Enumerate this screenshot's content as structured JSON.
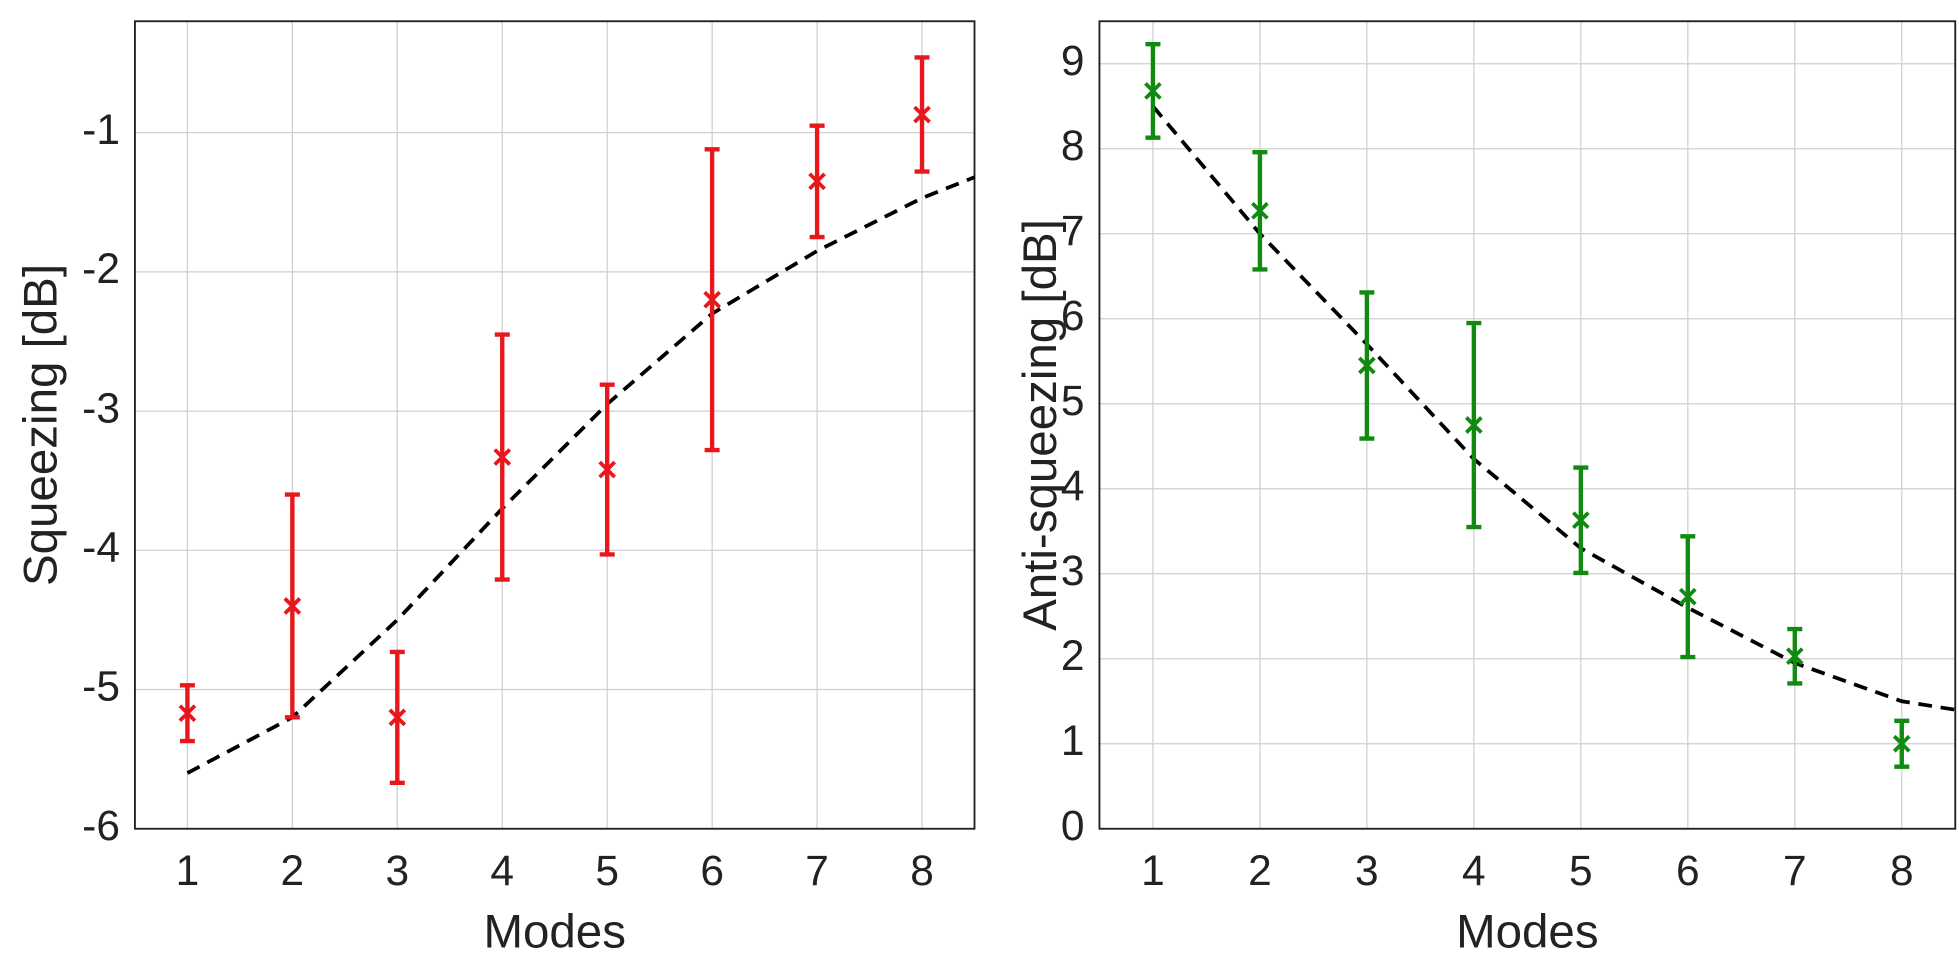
{
  "chart_data": [
    {
      "type": "errorbar",
      "ylabel": "Squeezing [dB]",
      "xlabel": "Modes",
      "x": [
        1,
        2,
        3,
        4,
        5,
        6,
        7,
        8
      ],
      "values": [
        -5.17,
        -4.4,
        -5.2,
        -3.33,
        -3.42,
        -2.2,
        -1.35,
        -0.87
      ],
      "errors": [
        0.2,
        0.8,
        0.47,
        0.88,
        0.61,
        1.08,
        0.4,
        0.41
      ],
      "color": "#e8171c",
      "fit": {
        "x": [
          1,
          2,
          3,
          4,
          5,
          6,
          7,
          8,
          8.5
        ],
        "y": [
          -5.6,
          -5.2,
          -4.5,
          -3.7,
          -2.95,
          -2.3,
          -1.85,
          -1.47,
          -1.32
        ],
        "color": "#000000"
      },
      "xlim": [
        0.5,
        8.5
      ],
      "ylim": [
        -6,
        -0.2
      ],
      "xticks": [
        1,
        2,
        3,
        4,
        5,
        6,
        7,
        8
      ],
      "yticks": [
        -6,
        -5,
        -4,
        -3,
        -2,
        -1
      ],
      "grid": true
    },
    {
      "type": "errorbar",
      "ylabel": "Anti-squeezing [dB]",
      "xlabel": "Modes",
      "x": [
        1,
        2,
        3,
        4,
        5,
        6,
        7,
        8
      ],
      "values": [
        8.68,
        7.27,
        5.45,
        4.75,
        3.63,
        2.73,
        2.03,
        1.0
      ],
      "errors": [
        0.55,
        0.69,
        0.86,
        1.2,
        0.62,
        0.71,
        0.32,
        0.27
      ],
      "color": "#118a11",
      "fit": {
        "x": [
          1,
          2,
          3,
          4,
          5,
          6,
          7,
          8,
          8.5
        ],
        "y": [
          8.5,
          7.0,
          5.7,
          4.35,
          3.3,
          2.6,
          1.95,
          1.5,
          1.4
        ],
        "color": "#000000"
      },
      "xlim": [
        0.5,
        8.5
      ],
      "ylim": [
        0,
        9.5
      ],
      "xticks": [
        1,
        2,
        3,
        4,
        5,
        6,
        7,
        8
      ],
      "yticks": [
        0,
        1,
        2,
        3,
        4,
        5,
        6,
        7,
        8,
        9
      ],
      "grid": true
    }
  ]
}
